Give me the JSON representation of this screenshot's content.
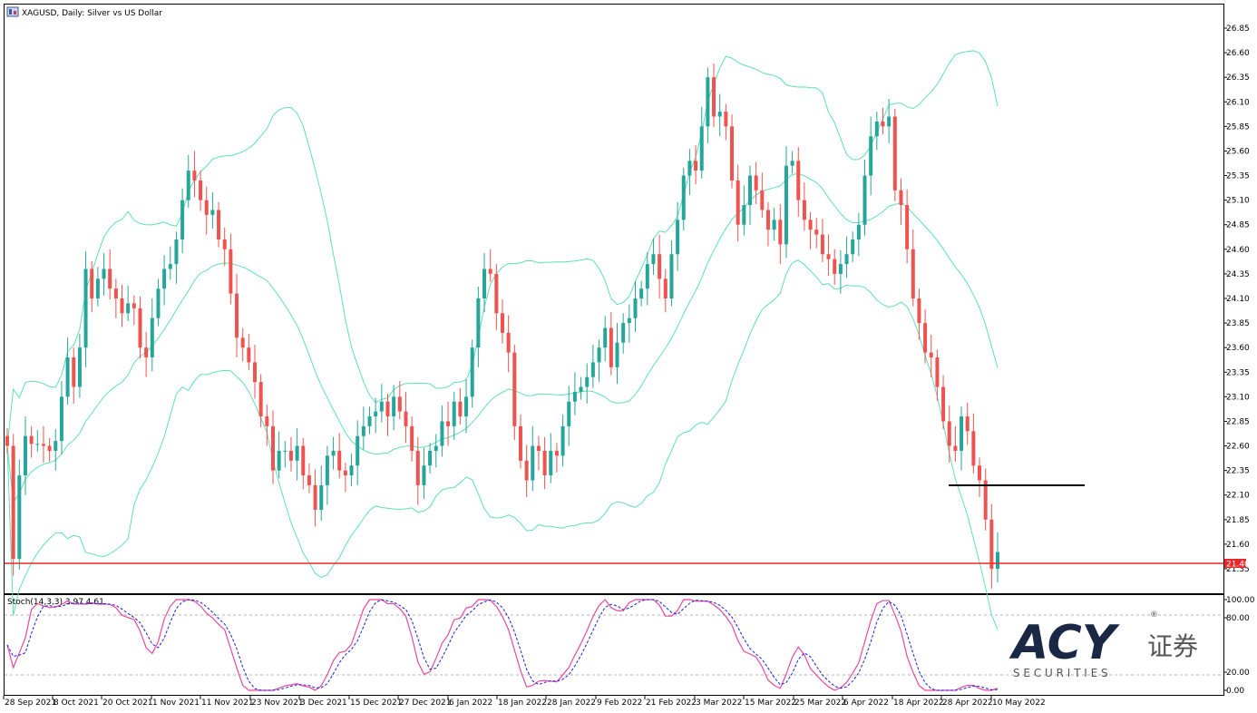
{
  "window": {
    "title": "XAGUSD, Daily:  Silver vs US Dollar",
    "indicator_label": "Stoch(14,3,3) 3.97 4.61"
  },
  "colors": {
    "bull": "#26a69a",
    "bear": "#ef5350",
    "bands": "#5fe0b0",
    "support": "#e8282a",
    "stoch_main": "#e8489c",
    "stoch_signal": "#1a1ae0",
    "logo_dark": "#1a2846",
    "logo_gray": "#5a5a5a"
  },
  "price_axis": {
    "ticks": [
      "26.85",
      "26.60",
      "26.35",
      "26.10",
      "25.85",
      "25.60",
      "25.35",
      "25.10",
      "24.85",
      "24.60",
      "24.35",
      "24.10",
      "23.85",
      "23.60",
      "23.35",
      "23.10",
      "22.85",
      "22.60",
      "22.35",
      "22.10",
      "21.85",
      "21.60",
      "21.35"
    ],
    "current_price_label": "21.40"
  },
  "stoch_axis": {
    "ticks": [
      "100.00",
      "80.00",
      "20.00",
      "0.00"
    ]
  },
  "date_axis": {
    "labels": [
      "28 Sep 2021",
      "8 Oct 2021",
      "20 Oct 2021",
      "1 Nov 2021",
      "11 Nov 2021",
      "23 Nov 2021",
      "3 Dec 2021",
      "15 Dec 2021",
      "27 Dec 2021",
      "6 Jan 2022",
      "18 Jan 2022",
      "28 Jan 2022",
      "9 Feb 2022",
      "21 Feb 2022",
      "3 Mar 2022",
      "15 Mar 2022",
      "25 Mar 2022",
      "6 Apr 2022",
      "18 Apr 2022",
      "28 Apr 2022",
      "10 May 2022"
    ]
  },
  "logo": {
    "brand": "ACY",
    "chinese": "证券",
    "sub": "S E C U R I T I E S",
    "registered": "®"
  },
  "chart_data": {
    "type": "candlestick",
    "symbol": "XAGUSD",
    "timeframe": "Daily",
    "ylim": [
      21.2,
      26.95
    ],
    "support_level": 21.4,
    "resistance_segment_level": 22.22,
    "indicators": [
      "Bollinger Bands",
      "Stoch(14,3,3)"
    ],
    "stoch_values": {
      "main": 3.97,
      "signal": 4.61
    }
  }
}
